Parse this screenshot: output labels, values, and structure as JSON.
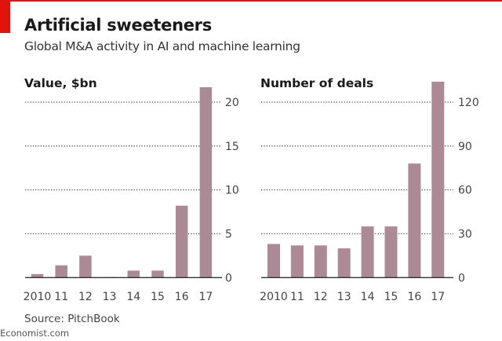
{
  "header": {
    "title": "Artificial sweeteners",
    "subtitle": "Global M&A activity in AI and machine learning"
  },
  "footer": {
    "source": "Source: PitchBook",
    "brand": "Economist.com"
  },
  "colors": {
    "bar": "#ab8a95",
    "accent": "#e3120b",
    "grid": "#555555"
  },
  "chart_data": [
    {
      "type": "bar",
      "title": "Value, $bn",
      "categories": [
        "2010",
        "11",
        "12",
        "13",
        "14",
        "15",
        "16",
        "17"
      ],
      "values": [
        0.4,
        1.4,
        2.5,
        0.05,
        0.8,
        0.8,
        8.2,
        21.7
      ],
      "ylim": [
        0,
        22
      ],
      "yticks": [
        0,
        5,
        10,
        15,
        20
      ],
      "grid": true,
      "yaxis_side": "right"
    },
    {
      "type": "bar",
      "title": "Number of deals",
      "categories": [
        "2010",
        "11",
        "12",
        "13",
        "14",
        "15",
        "16",
        "17"
      ],
      "values": [
        23,
        22,
        22,
        20,
        35,
        35,
        78,
        134
      ],
      "ylim": [
        0,
        135
      ],
      "yticks": [
        0,
        30,
        60,
        90,
        120
      ],
      "grid": true,
      "yaxis_side": "right"
    }
  ]
}
